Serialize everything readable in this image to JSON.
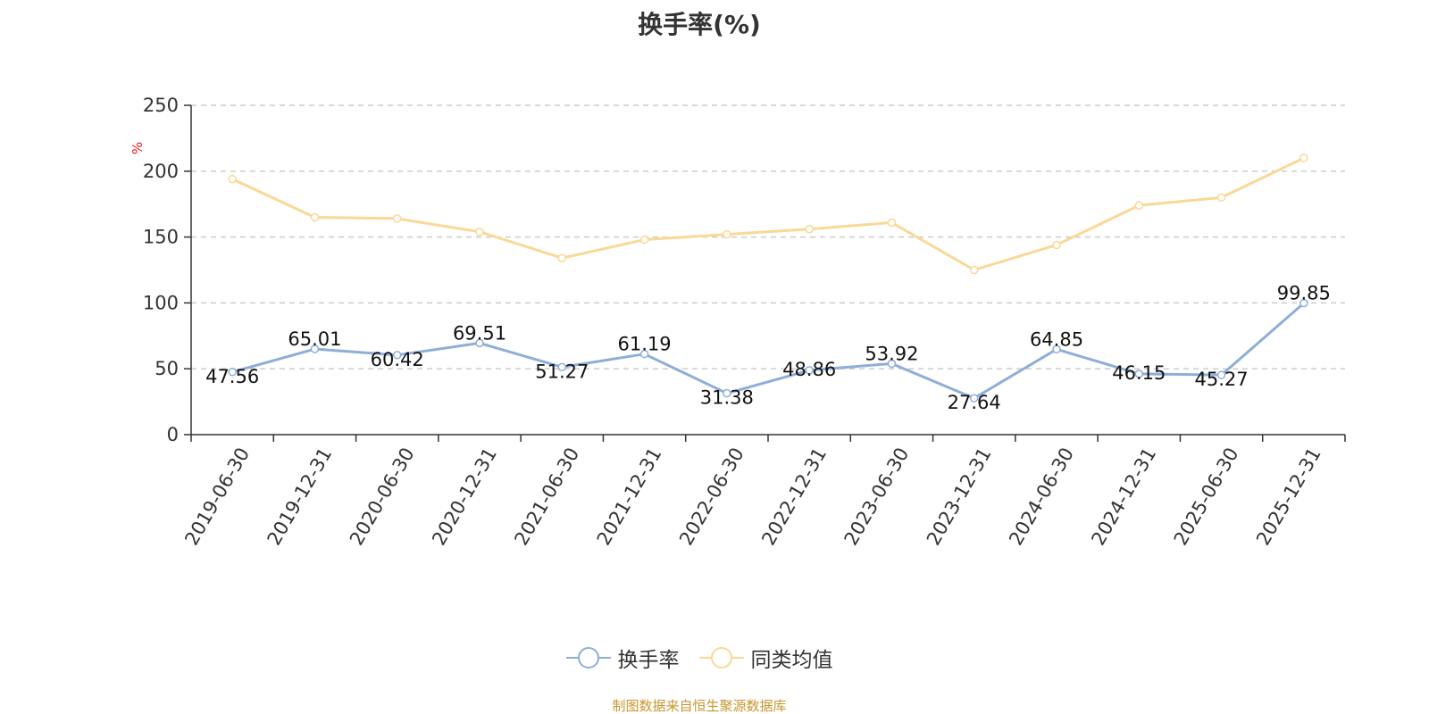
{
  "title": "换手率(%)",
  "source": "制图数据来自恒生聚源数据库",
  "colors": {
    "series1": "#8eaed8",
    "series2": "#fad896",
    "grid": "#cccccc",
    "axis": "#333333",
    "unit": "#e8141e"
  },
  "chart_data": {
    "type": "line",
    "title": "换手率(%)",
    "ylabel": "%",
    "xlabel": "",
    "ylim": [
      0,
      250
    ],
    "yticks": [
      0,
      50,
      100,
      150,
      200,
      250
    ],
    "grid": true,
    "legend_position": "bottom",
    "categories": [
      "2019-06-30",
      "2019-12-31",
      "2020-06-30",
      "2020-12-31",
      "2021-06-30",
      "2021-12-31",
      "2022-06-30",
      "2022-12-31",
      "2023-06-30",
      "2023-12-31",
      "2024-06-30",
      "2024-12-31",
      "2025-06-30",
      "2025-12-31"
    ],
    "series": [
      {
        "name": "换手率",
        "labels_shown": true,
        "values": [
          47.56,
          65.01,
          60.42,
          69.51,
          51.27,
          61.19,
          31.38,
          48.86,
          53.92,
          27.64,
          64.85,
          46.15,
          45.27,
          99.85
        ],
        "value_labels": [
          "47.56",
          "65.01",
          "60.42",
          "69.51",
          "51.27",
          "61.19",
          "31.38",
          "48.86",
          "53.92",
          "27.64",
          "64.85",
          "46.15",
          "45.27",
          "99.85"
        ]
      },
      {
        "name": "同类均值",
        "labels_shown": false,
        "values": [
          194,
          165,
          164,
          154,
          134,
          148,
          152,
          156,
          161,
          125,
          144,
          174,
          180,
          210
        ]
      }
    ]
  }
}
